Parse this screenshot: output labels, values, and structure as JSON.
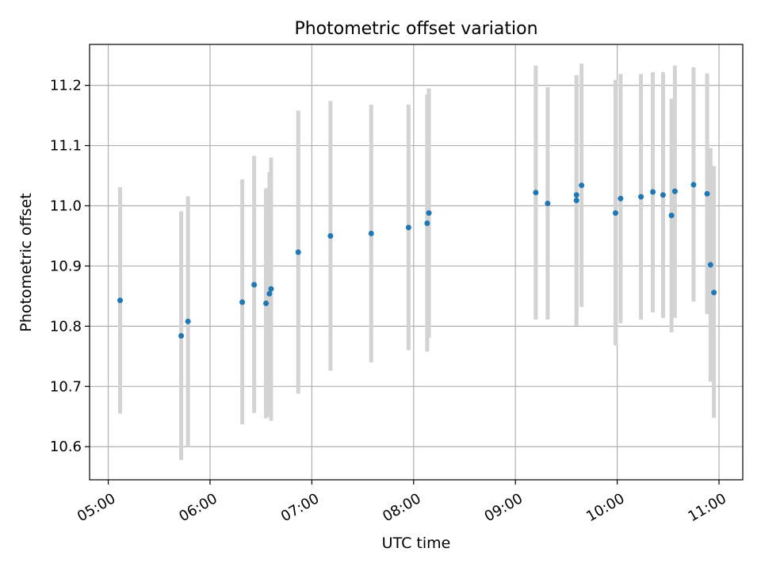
{
  "chart_data": {
    "type": "scatter",
    "title": "Photometric offset variation",
    "xlabel": "UTC time",
    "ylabel": "Photometric offset",
    "x_range": [
      "04:49",
      "11:14"
    ],
    "y_range": [
      10.545,
      11.268
    ],
    "x_ticks": [
      "05:00",
      "06:00",
      "07:00",
      "08:00",
      "09:00",
      "10:00",
      "11:00"
    ],
    "y_ticks": [
      10.6,
      10.7,
      10.8,
      10.9,
      11.0,
      11.1,
      11.2
    ],
    "grid": true,
    "colors": {
      "points": "#1f77b4",
      "error_bars": "#d3d3d3",
      "grid": "#b0b0b0"
    },
    "points": [
      {
        "x": "05:07",
        "y": 10.843,
        "err_low": 10.655,
        "err_high": 11.031
      },
      {
        "x": "05:43",
        "y": 10.784,
        "err_low": 10.578,
        "err_high": 10.991
      },
      {
        "x": "05:47",
        "y": 10.808,
        "err_low": 10.6,
        "err_high": 11.016
      },
      {
        "x": "06:19",
        "y": 10.84,
        "err_low": 10.637,
        "err_high": 11.044
      },
      {
        "x": "06:26",
        "y": 10.869,
        "err_low": 10.656,
        "err_high": 11.083
      },
      {
        "x": "06:33",
        "y": 10.838,
        "err_low": 10.647,
        "err_high": 11.029
      },
      {
        "x": "06:35",
        "y": 10.854,
        "err_low": 10.65,
        "err_high": 11.056
      },
      {
        "x": "06:36",
        "y": 10.862,
        "err_low": 10.643,
        "err_high": 11.08
      },
      {
        "x": "06:52",
        "y": 10.923,
        "err_low": 10.688,
        "err_high": 11.158
      },
      {
        "x": "07:11",
        "y": 10.95,
        "err_low": 10.726,
        "err_high": 11.174
      },
      {
        "x": "07:35",
        "y": 10.954,
        "err_low": 10.74,
        "err_high": 11.168
      },
      {
        "x": "07:57",
        "y": 10.964,
        "err_low": 10.76,
        "err_high": 11.168
      },
      {
        "x": "08:08",
        "y": 10.971,
        "err_low": 10.758,
        "err_high": 11.185
      },
      {
        "x": "08:09",
        "y": 10.988,
        "err_low": 10.781,
        "err_high": 11.195
      },
      {
        "x": "09:12",
        "y": 11.022,
        "err_low": 10.811,
        "err_high": 11.233
      },
      {
        "x": "09:19",
        "y": 11.004,
        "err_low": 10.811,
        "err_high": 11.197
      },
      {
        "x": "09:36",
        "y": 11.009,
        "err_low": 10.801,
        "err_high": 11.217
      },
      {
        "x": "09:36",
        "y": 11.018,
        "err_low": 10.82,
        "err_high": 11.216
      },
      {
        "x": "09:39",
        "y": 11.034,
        "err_low": 10.832,
        "err_high": 11.236
      },
      {
        "x": "09:59",
        "y": 10.988,
        "err_low": 10.768,
        "err_high": 11.209
      },
      {
        "x": "10:02",
        "y": 11.012,
        "err_low": 10.805,
        "err_high": 11.219
      },
      {
        "x": "10:14",
        "y": 11.015,
        "err_low": 10.811,
        "err_high": 11.219
      },
      {
        "x": "10:21",
        "y": 11.023,
        "err_low": 10.823,
        "err_high": 11.222
      },
      {
        "x": "10:27",
        "y": 11.018,
        "err_low": 10.814,
        "err_high": 11.222
      },
      {
        "x": "10:32",
        "y": 10.984,
        "err_low": 10.79,
        "err_high": 11.178
      },
      {
        "x": "10:34",
        "y": 11.024,
        "err_low": 10.814,
        "err_high": 11.233
      },
      {
        "x": "10:45",
        "y": 11.035,
        "err_low": 10.841,
        "err_high": 11.23
      },
      {
        "x": "10:53",
        "y": 11.02,
        "err_low": 10.82,
        "err_high": 11.22
      },
      {
        "x": "10:55",
        "y": 10.902,
        "err_low": 10.708,
        "err_high": 11.096
      },
      {
        "x": "10:57",
        "y": 10.856,
        "err_low": 10.648,
        "err_high": 11.066
      }
    ]
  }
}
